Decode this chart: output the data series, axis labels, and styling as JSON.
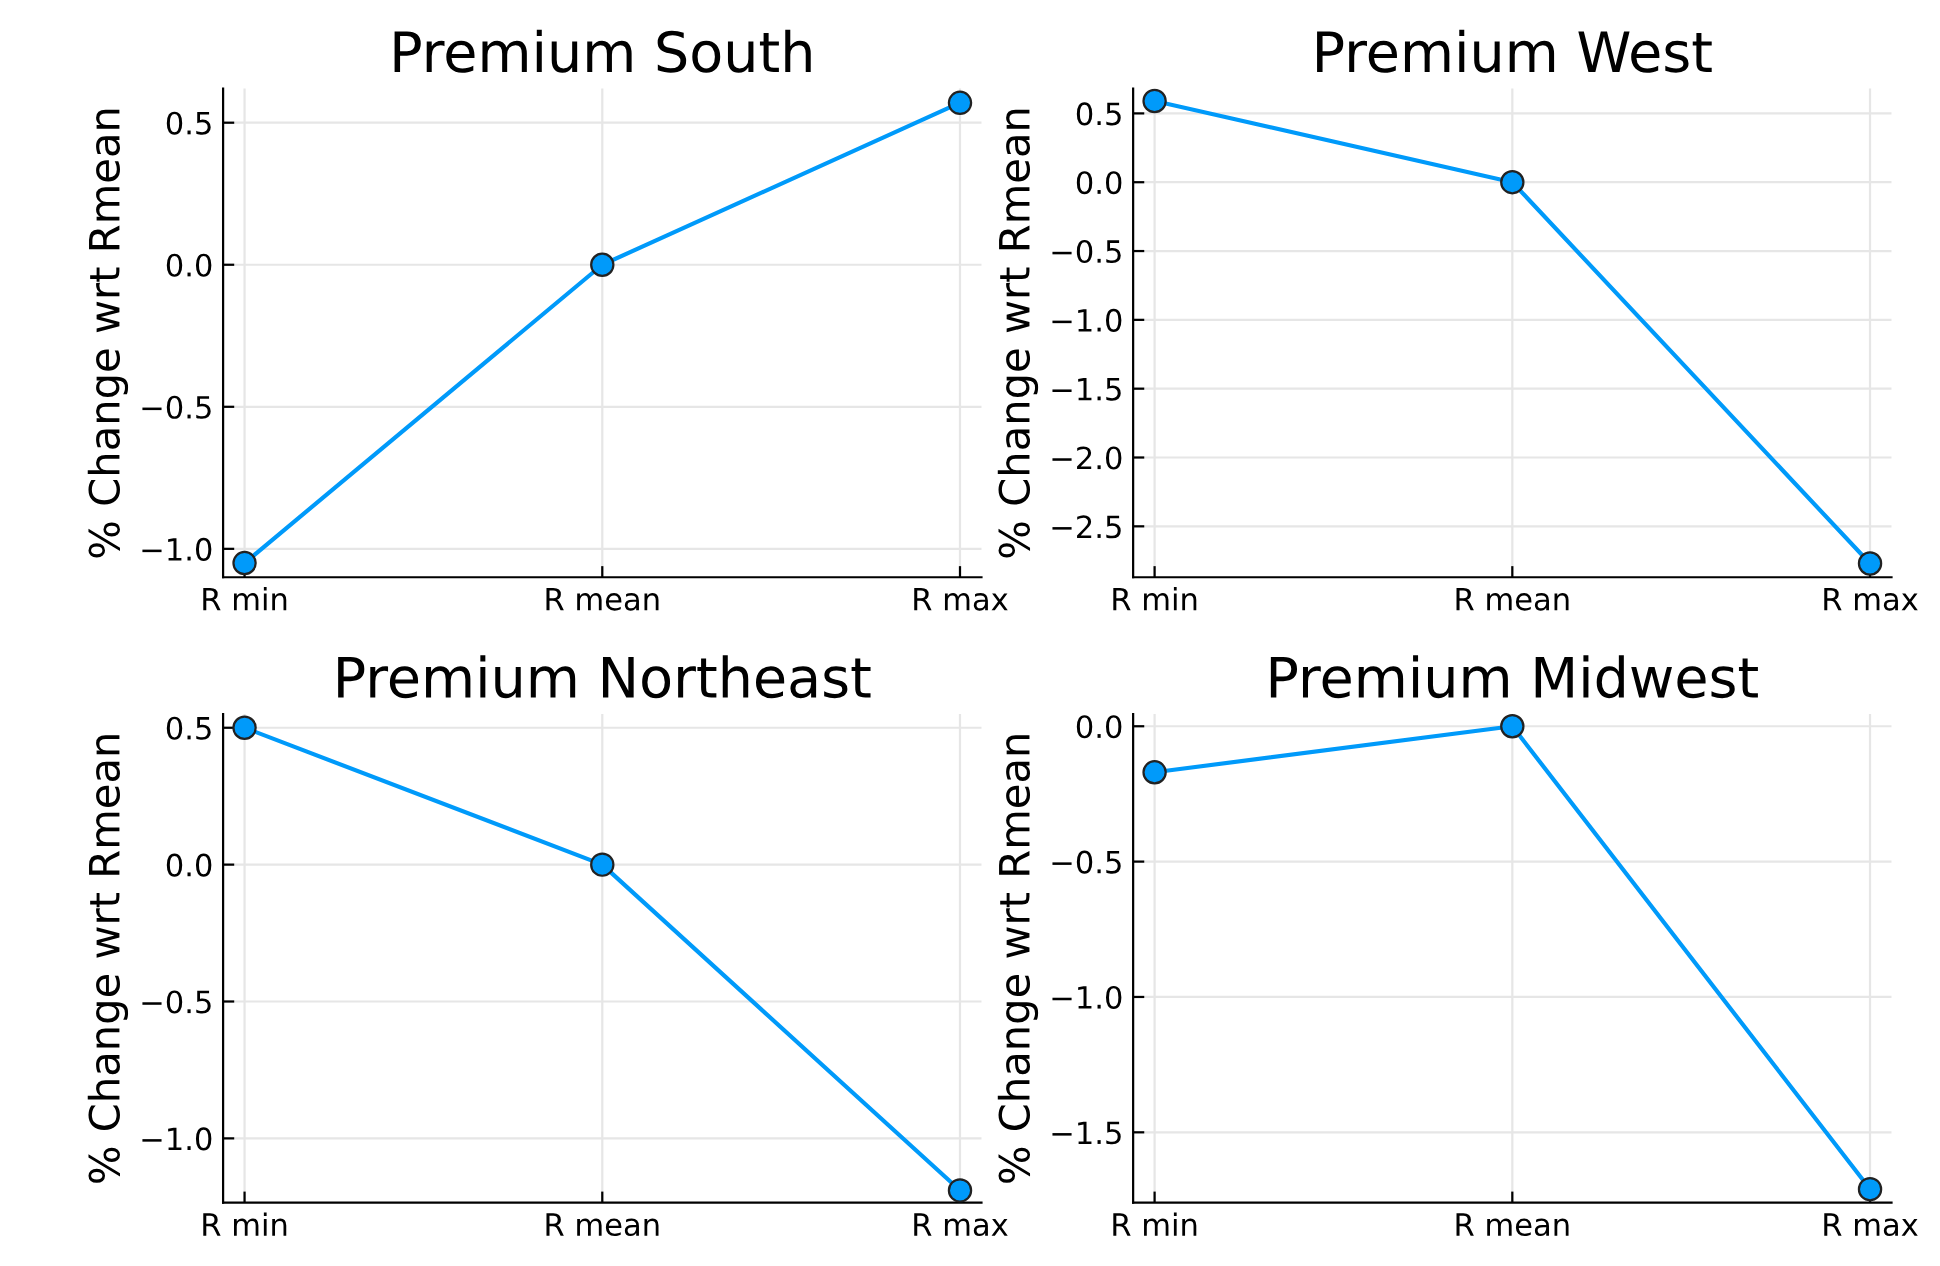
{
  "chart_data": [
    {
      "type": "line",
      "title": "Premium South",
      "ylabel": "% Change wrt Rmean",
      "categories": [
        "R min",
        "R mean",
        "R max"
      ],
      "series": [
        {
          "color": "#009afa",
          "values": [
            -1.05,
            0.0,
            0.57
          ]
        }
      ],
      "ylim": [
        -1.1,
        0.62
      ],
      "yticks": [
        {
          "value": -1.0,
          "label": "−1.0"
        },
        {
          "value": -0.5,
          "label": "−0.5"
        },
        {
          "value": 0.0,
          "label": "0.0"
        },
        {
          "value": 0.5,
          "label": "0.5"
        }
      ],
      "grid": true,
      "marker": "circle",
      "line_style": "solid"
    },
    {
      "type": "line",
      "title": "Premium West",
      "ylabel": "% Change wrt Rmean",
      "categories": [
        "R min",
        "R mean",
        "R max"
      ],
      "series": [
        {
          "color": "#009afa",
          "values": [
            0.59,
            0.0,
            -2.77
          ]
        }
      ],
      "ylim": [
        -2.87,
        0.68
      ],
      "yticks": [
        {
          "value": -2.5,
          "label": "−2.5"
        },
        {
          "value": -2.0,
          "label": "−2.0"
        },
        {
          "value": -1.5,
          "label": "−1.5"
        },
        {
          "value": -1.0,
          "label": "−1.0"
        },
        {
          "value": -0.5,
          "label": "−0.5"
        },
        {
          "value": 0.0,
          "label": "0.0"
        },
        {
          "value": 0.5,
          "label": "0.5"
        }
      ],
      "grid": true,
      "marker": "circle",
      "line_style": "solid"
    },
    {
      "type": "line",
      "title": "Premium Northeast",
      "ylabel": "% Change wrt Rmean",
      "categories": [
        "R min",
        "R mean",
        "R max"
      ],
      "series": [
        {
          "color": "#009afa",
          "values": [
            0.5,
            0.0,
            -1.19
          ]
        }
      ],
      "ylim": [
        -1.235,
        0.55
      ],
      "yticks": [
        {
          "value": -1.0,
          "label": "−1.0"
        },
        {
          "value": -0.5,
          "label": "−0.5"
        },
        {
          "value": 0.0,
          "label": "0.0"
        },
        {
          "value": 0.5,
          "label": "0.5"
        }
      ],
      "grid": true,
      "marker": "circle",
      "line_style": "solid"
    },
    {
      "type": "line",
      "title": "Premium Midwest",
      "ylabel": "% Change wrt Rmean",
      "categories": [
        "R min",
        "R mean",
        "R max"
      ],
      "series": [
        {
          "color": "#009afa",
          "values": [
            -0.17,
            0.0,
            -1.71
          ]
        }
      ],
      "ylim": [
        -1.76,
        0.045
      ],
      "yticks": [
        {
          "value": -1.5,
          "label": "−1.5"
        },
        {
          "value": -1.0,
          "label": "−1.0"
        },
        {
          "value": -0.5,
          "label": "−0.5"
        },
        {
          "value": 0.0,
          "label": "0.0"
        }
      ],
      "grid": true,
      "marker": "circle",
      "line_style": "solid"
    }
  ]
}
